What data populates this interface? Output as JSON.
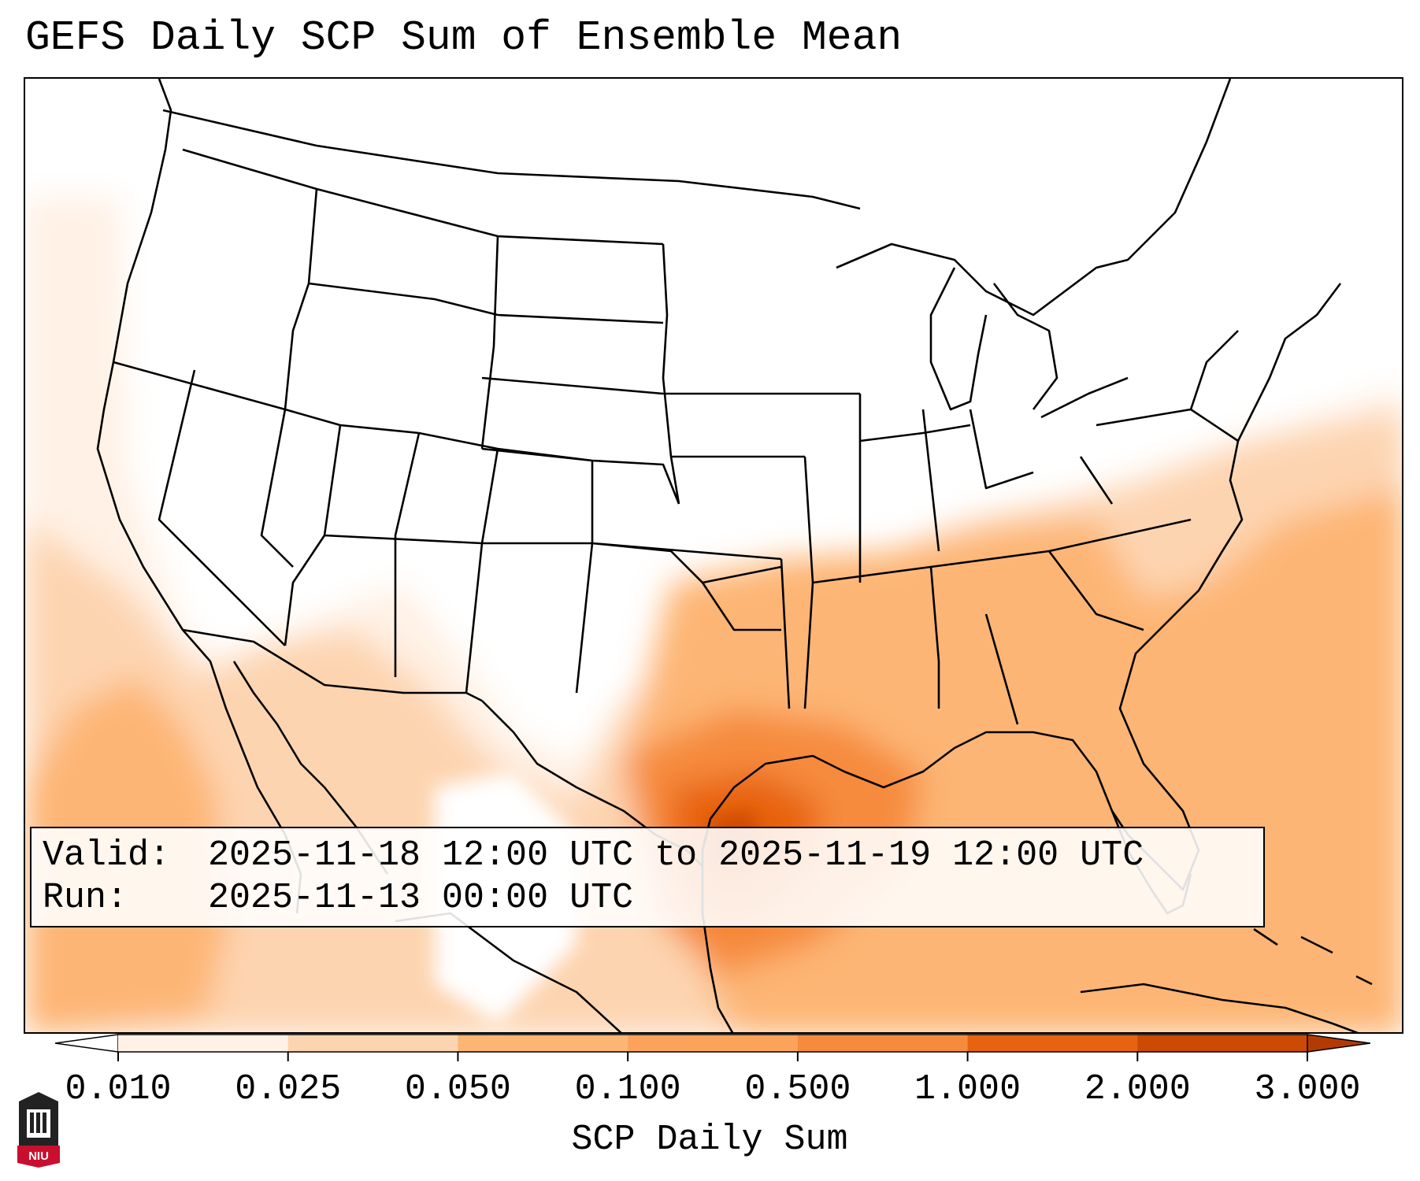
{
  "title": "GEFS Daily SCP Sum of Ensemble Mean",
  "info": {
    "valid_label": "Valid:",
    "valid_value": "2025-11-18 12:00 UTC to 2025-11-19 12:00 UTC",
    "run_label": "Run:",
    "run_value": "2025-11-13 00:00 UTC"
  },
  "colorbar": {
    "label": "SCP Daily Sum",
    "ticks": [
      "0.010",
      "0.025",
      "0.050",
      "0.100",
      "0.500",
      "1.000",
      "2.000",
      "3.000"
    ],
    "colors": [
      "#fff1e5",
      "#fdd4b0",
      "#fdb574",
      "#fca35b",
      "#f68b3d",
      "#e8630f",
      "#cc4a04"
    ],
    "extend": "both",
    "under_color": "#ffffff",
    "over_color": "#b33b03"
  },
  "logo": {
    "text": "NIU"
  }
}
